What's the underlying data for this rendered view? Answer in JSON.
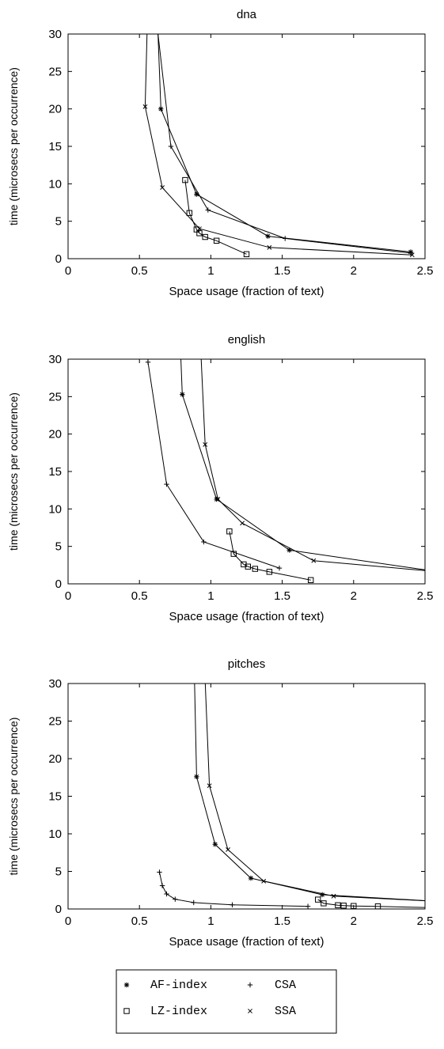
{
  "chart_data": [
    {
      "type": "line",
      "title": "dna",
      "xlabel": "Space usage (fraction of text)",
      "ylabel": "time (microsecs per occurrence)",
      "xlim": [
        0,
        2.5
      ],
      "ylim": [
        0,
        30
      ],
      "xticks": [
        "0",
        "0.5",
        "1",
        "1.5",
        "2",
        "2.5"
      ],
      "yticks": [
        "0",
        "5",
        "10",
        "15",
        "20",
        "25",
        "30"
      ],
      "grid": false,
      "series": [
        {
          "name": "AF-index",
          "marker": "star",
          "x": [
            0.62,
            0.65,
            0.9,
            1.4,
            2.4
          ],
          "y": [
            35,
            20.0,
            8.6,
            3.0,
            0.9
          ]
        },
        {
          "name": "CSA",
          "marker": "plus",
          "x": [
            0.6,
            0.72,
            0.98,
            1.52,
            2.4
          ],
          "y": [
            35,
            15.0,
            6.5,
            2.7,
            0.75
          ]
        },
        {
          "name": "LZ-index",
          "marker": "square",
          "x": [
            0.82,
            0.85,
            0.9,
            0.92,
            0.96,
            1.04,
            1.25
          ],
          "y": [
            10.5,
            6.1,
            3.9,
            3.4,
            2.9,
            2.4,
            0.6
          ]
        },
        {
          "name": "SSA",
          "marker": "cross",
          "x": [
            0.56,
            0.54,
            0.66,
            0.92,
            1.41,
            2.41
          ],
          "y": [
            35,
            20.3,
            9.5,
            4.0,
            1.5,
            0.5
          ]
        }
      ]
    },
    {
      "type": "line",
      "title": "english",
      "xlabel": "Space usage (fraction of text)",
      "ylabel": "time (microsecs per occurrence)",
      "xlim": [
        0,
        2.5
      ],
      "ylim": [
        0,
        30
      ],
      "xticks": [
        "0",
        "0.5",
        "1",
        "1.5",
        "2",
        "2.5"
      ],
      "yticks": [
        "0",
        "5",
        "10",
        "15",
        "20",
        "25",
        "30"
      ],
      "grid": false,
      "series": [
        {
          "name": "AF-index",
          "marker": "star",
          "x": [
            0.78,
            0.8,
            1.04,
            1.55,
            2.6
          ],
          "y": [
            35,
            25.3,
            11.3,
            4.5,
            1.6
          ]
        },
        {
          "name": "CSA",
          "marker": "plus",
          "x": [
            0.55,
            0.56,
            0.69,
            0.95,
            1.48
          ],
          "y": [
            35,
            29.6,
            13.3,
            5.6,
            2.1
          ]
        },
        {
          "name": "LZ-index",
          "marker": "square",
          "x": [
            1.13,
            1.16,
            1.23,
            1.26,
            1.31,
            1.41,
            1.7
          ],
          "y": [
            7.0,
            4.0,
            2.6,
            2.3,
            2.0,
            1.6,
            0.5
          ]
        },
        {
          "name": "SSA",
          "marker": "cross",
          "x": [
            0.92,
            0.96,
            1.05,
            1.22,
            1.72,
            2.6
          ],
          "y": [
            35,
            18.6,
            11.3,
            8.1,
            3.1,
            1.6
          ]
        }
      ]
    },
    {
      "type": "line",
      "title": "pitches",
      "xlabel": "Space usage (fraction of text)",
      "ylabel": "time (microsecs per occurrence)",
      "xlim": [
        0,
        2.5
      ],
      "ylim": [
        0,
        30
      ],
      "xticks": [
        "0",
        "0.5",
        "1",
        "1.5",
        "2",
        "2.5"
      ],
      "yticks": [
        "0",
        "5",
        "10",
        "15",
        "20",
        "25",
        "30"
      ],
      "grid": false,
      "series": [
        {
          "name": "AF-index",
          "marker": "star",
          "x": [
            0.88,
            0.9,
            1.03,
            1.28,
            1.78,
            2.6
          ],
          "y": [
            35,
            17.6,
            8.6,
            4.1,
            1.9,
            1.0
          ]
        },
        {
          "name": "CSA",
          "marker": "plus",
          "x": [
            0.64,
            0.66,
            0.69,
            0.75,
            0.88,
            1.15,
            1.68
          ],
          "y": [
            4.9,
            3.1,
            2.0,
            1.3,
            0.85,
            0.55,
            0.35
          ]
        },
        {
          "name": "LZ-index",
          "marker": "square",
          "x": [
            1.75,
            1.79,
            1.89,
            1.93,
            2.0,
            2.17,
            2.6
          ],
          "y": [
            1.25,
            0.75,
            0.5,
            0.45,
            0.4,
            0.35,
            0.15
          ]
        },
        {
          "name": "SSA",
          "marker": "cross",
          "x": [
            0.95,
            0.99,
            1.12,
            1.37,
            1.86,
            2.6
          ],
          "y": [
            35,
            16.4,
            7.9,
            3.7,
            1.7,
            1.0
          ]
        }
      ]
    }
  ],
  "legend": {
    "placement": "bottom-center",
    "entries": [
      {
        "label": "AF-index",
        "marker": "star"
      },
      {
        "label": "CSA",
        "marker": "plus"
      },
      {
        "label": "LZ-index",
        "marker": "square"
      },
      {
        "label": "SSA",
        "marker": "cross"
      }
    ]
  },
  "colors": {
    "line": "#000000",
    "axis": "#000000",
    "background": "#ffffff"
  }
}
